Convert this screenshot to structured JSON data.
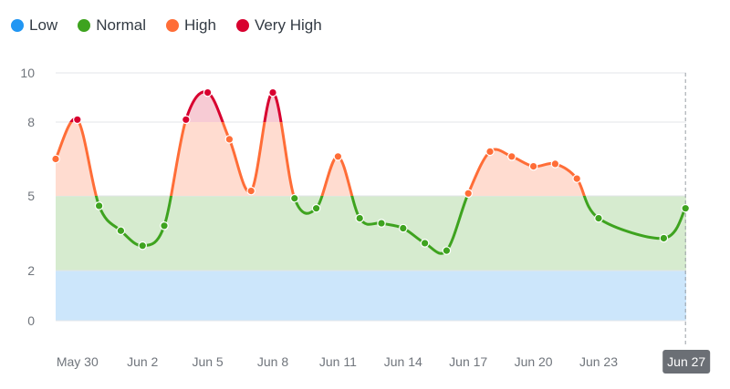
{
  "legend": [
    {
      "label": "Low",
      "color": "#2196f3"
    },
    {
      "label": "Normal",
      "color": "#3ea31f"
    },
    {
      "label": "High",
      "color": "#ff6d37"
    },
    {
      "label": "Very High",
      "color": "#d8002f"
    }
  ],
  "chart_data": {
    "type": "area",
    "title": "",
    "xlabel": "",
    "ylabel": "",
    "ylim": [
      0,
      10
    ],
    "yticks": [
      0,
      2,
      5,
      8,
      10
    ],
    "xticks": [
      "May 30",
      "Jun 2",
      "Jun 5",
      "Jun 8",
      "Jun 11",
      "Jun 14",
      "Jun 17",
      "Jun 20",
      "Jun 23",
      "Jun 27"
    ],
    "highlighted_xtick": "Jun 27",
    "bands": [
      {
        "name": "Low",
        "from": 0,
        "to": 2,
        "color": "#cce6fb"
      },
      {
        "name": "Normal",
        "from": 2,
        "to": 5,
        "color": "#d6ebcf"
      },
      {
        "name": "High",
        "from": 5,
        "to": 8,
        "color": "#ffdcd0"
      },
      {
        "name": "Very High",
        "from": 8,
        "to": 10,
        "color": "#f7cbd4"
      }
    ],
    "x": [
      "May 29",
      "May 30",
      "May 31",
      "Jun 1",
      "Jun 2",
      "Jun 3",
      "Jun 4",
      "Jun 5",
      "Jun 6",
      "Jun 7",
      "Jun 8",
      "Jun 9",
      "Jun 10",
      "Jun 11",
      "Jun 12",
      "Jun 13",
      "Jun 14",
      "Jun 15",
      "Jun 16",
      "Jun 17",
      "Jun 18",
      "Jun 19",
      "Jun 20",
      "Jun 21",
      "Jun 22",
      "Jun 23",
      "Jun 26",
      "Jun 27"
    ],
    "values": [
      6.5,
      8.1,
      4.6,
      3.6,
      3.0,
      3.8,
      8.1,
      9.2,
      7.3,
      5.2,
      9.2,
      4.9,
      4.5,
      6.6,
      4.1,
      3.9,
      3.7,
      3.1,
      2.8,
      5.1,
      6.8,
      6.6,
      6.2,
      6.3,
      5.7,
      4.1,
      3.3,
      4.5
    ]
  }
}
